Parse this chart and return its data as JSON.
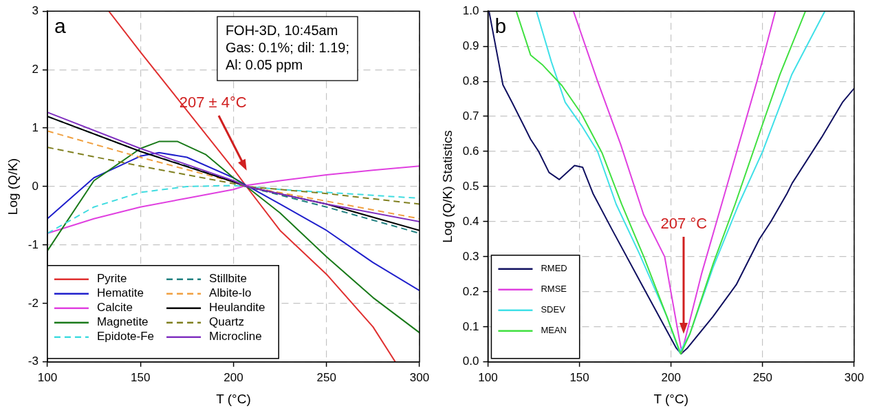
{
  "chart_data": [
    {
      "type": "line",
      "xlabel": "T (°C)",
      "ylabel": "Log (Q/K)",
      "xlim": [
        100,
        300
      ],
      "xticks": [
        100,
        150,
        200,
        250,
        300
      ],
      "ylim": [
        -3,
        3
      ],
      "yticks": [
        -3,
        -2,
        -1,
        0,
        1,
        2,
        3
      ],
      "grid": true,
      "legend": "bottom left",
      "annotations": [
        "a",
        "FOH-3D, 10:45am",
        "Gas: 0.1%; dil: 1.19;",
        "Al: 0.05 ppm",
        "207 ± 4°C"
      ],
      "series": [
        {
          "name": "Pyrite",
          "color": "#e03030",
          "x": [
            133,
            150,
            175,
            200,
            207,
            225,
            250,
            275,
            287
          ],
          "values": [
            3,
            2.3,
            1.3,
            0.3,
            0,
            -0.75,
            -1.5,
            -2.4,
            -3
          ]
        },
        {
          "name": "Hematite",
          "color": "#2020cc",
          "x": [
            100,
            125,
            150,
            160,
            175,
            200,
            207,
            225,
            250,
            275,
            300
          ],
          "values": [
            -0.55,
            0.15,
            0.52,
            0.58,
            0.5,
            0.15,
            0.02,
            -0.3,
            -0.75,
            -1.3,
            -1.78
          ]
        },
        {
          "name": "Calcite",
          "color": "#e040e0",
          "x": [
            100,
            125,
            150,
            175,
            200,
            207,
            225,
            250,
            275,
            300
          ],
          "values": [
            -0.8,
            -0.55,
            -0.35,
            -0.2,
            -0.05,
            0.02,
            0.1,
            0.2,
            0.28,
            0.35
          ]
        },
        {
          "name": "Magnetite",
          "color": "#1a7a1a",
          "x": [
            100,
            125,
            150,
            160,
            170,
            185,
            200,
            207,
            225,
            250,
            275,
            300
          ],
          "values": [
            -1.1,
            0.1,
            0.65,
            0.77,
            0.77,
            0.55,
            0.15,
            0,
            -0.45,
            -1.2,
            -1.9,
            -2.5
          ]
        },
        {
          "name": "Epidote-Fe",
          "color": "#40dce0",
          "line_style": "dashed",
          "x": [
            100,
            125,
            150,
            175,
            200,
            207,
            225,
            250,
            275,
            300
          ],
          "values": [
            -0.8,
            -0.35,
            -0.1,
            0,
            0.02,
            0,
            -0.05,
            -0.1,
            -0.15,
            -0.2
          ]
        },
        {
          "name": "Stillbite",
          "color": "#208080",
          "line_style": "dashed",
          "x": [
            100,
            150,
            200,
            207,
            250,
            300
          ],
          "values": [
            1.2,
            0.6,
            0.1,
            0,
            -0.35,
            -0.8
          ]
        },
        {
          "name": "Albite-lo",
          "color": "#f0a040",
          "line_style": "dashed",
          "x": [
            100,
            150,
            200,
            207,
            250,
            300
          ],
          "values": [
            0.95,
            0.5,
            0.08,
            0,
            -0.25,
            -0.55
          ]
        },
        {
          "name": "Heulandite",
          "color": "#000000",
          "x": [
            100,
            150,
            200,
            207,
            250,
            300
          ],
          "values": [
            1.2,
            0.6,
            0.08,
            0,
            -0.3,
            -0.75
          ]
        },
        {
          "name": "Quartz",
          "color": "#808020",
          "line_style": "dashed",
          "x": [
            100,
            150,
            200,
            207,
            250,
            300
          ],
          "values": [
            0.67,
            0.35,
            0.05,
            0,
            -0.12,
            -0.3
          ]
        },
        {
          "name": "Microcline",
          "color": "#8030c0",
          "x": [
            100,
            150,
            200,
            207,
            250,
            300
          ],
          "values": [
            1.27,
            0.65,
            0.1,
            0,
            -0.3,
            -0.6
          ]
        }
      ]
    },
    {
      "type": "line",
      "xlabel": "T (°C)",
      "ylabel": "Log (Q/K) Statistics",
      "xlim": [
        100,
        300
      ],
      "xticks": [
        100,
        150,
        200,
        250,
        300
      ],
      "ylim": [
        0,
        1
      ],
      "yticks": [
        {
          "value": 0,
          "label": "0.0"
        },
        {
          "value": 0.1,
          "label": "0.1"
        },
        {
          "value": 0.2,
          "label": "0.2"
        },
        {
          "value": 0.3,
          "label": "0.3"
        },
        {
          "value": 0.4,
          "label": "0.4"
        },
        {
          "value": 0.5,
          "label": "0.5"
        },
        {
          "value": 0.6,
          "label": "0.6"
        },
        {
          "value": 0.7,
          "label": "0.7"
        },
        {
          "value": 0.8,
          "label": "0.8"
        },
        {
          "value": 0.9,
          "label": "0.9"
        },
        {
          "value": 1,
          "label": "1.0"
        }
      ],
      "grid": true,
      "legend": "bottom left",
      "annotations": [
        "b",
        "207 °C"
      ],
      "series": [
        {
          "name": "RMED",
          "color": "#101060",
          "x": [
            100.6,
            108.2,
            113.2,
            123.3,
            127.7,
            133.4,
            139,
            147.3,
            151.7,
            157.4,
            167.5,
            185.1,
            202.8,
            205.5,
            209,
            223,
            235.6,
            248.2,
            254.5,
            263.3,
            266.2,
            282.2,
            293.6,
            300
          ],
          "values": [
            1,
            0.79,
            0.74,
            0.635,
            0.6,
            0.54,
            0.52,
            0.56,
            0.555,
            0.48,
            0.38,
            0.21,
            0.04,
            0.023,
            0.04,
            0.13,
            0.22,
            0.35,
            0.4,
            0.48,
            0.51,
            0.64,
            0.74,
            0.78
          ]
        },
        {
          "name": "RMSE",
          "color": "#e040e0",
          "x": [
            146.7,
            159.9,
            172.5,
            185,
            196.5,
            204,
            205.9,
            207.8,
            216.6,
            229.3,
            246.9,
            257
          ],
          "values": [
            1,
            0.8,
            0.62,
            0.42,
            0.3,
            0.08,
            0.027,
            0.067,
            0.25,
            0.48,
            0.8,
            1
          ]
        },
        {
          "name": "SDEV",
          "color": "#40e0e8",
          "x": [
            126.5,
            134.7,
            142.2,
            151,
            159.9,
            170,
            182.6,
            197.7,
            204.7,
            210.3,
            223,
            237,
            250,
            266,
            276,
            284
          ],
          "values": [
            1,
            0.855,
            0.74,
            0.675,
            0.6,
            0.45,
            0.31,
            0.13,
            0.027,
            0.08,
            0.27,
            0.45,
            0.6,
            0.82,
            0.92,
            1
          ]
        },
        {
          "name": "MEAN",
          "color": "#40e040",
          "x": [
            115.5,
            123.3,
            129.6,
            140.4,
            151,
            162.4,
            173,
            185.1,
            197.7,
            205.3,
            210.3,
            223,
            235,
            252,
            259.5,
            273.4
          ],
          "values": [
            1,
            0.875,
            0.848,
            0.788,
            0.708,
            0.595,
            0.45,
            0.3,
            0.13,
            0.023,
            0.08,
            0.28,
            0.45,
            0.708,
            0.82,
            1
          ]
        }
      ]
    }
  ]
}
